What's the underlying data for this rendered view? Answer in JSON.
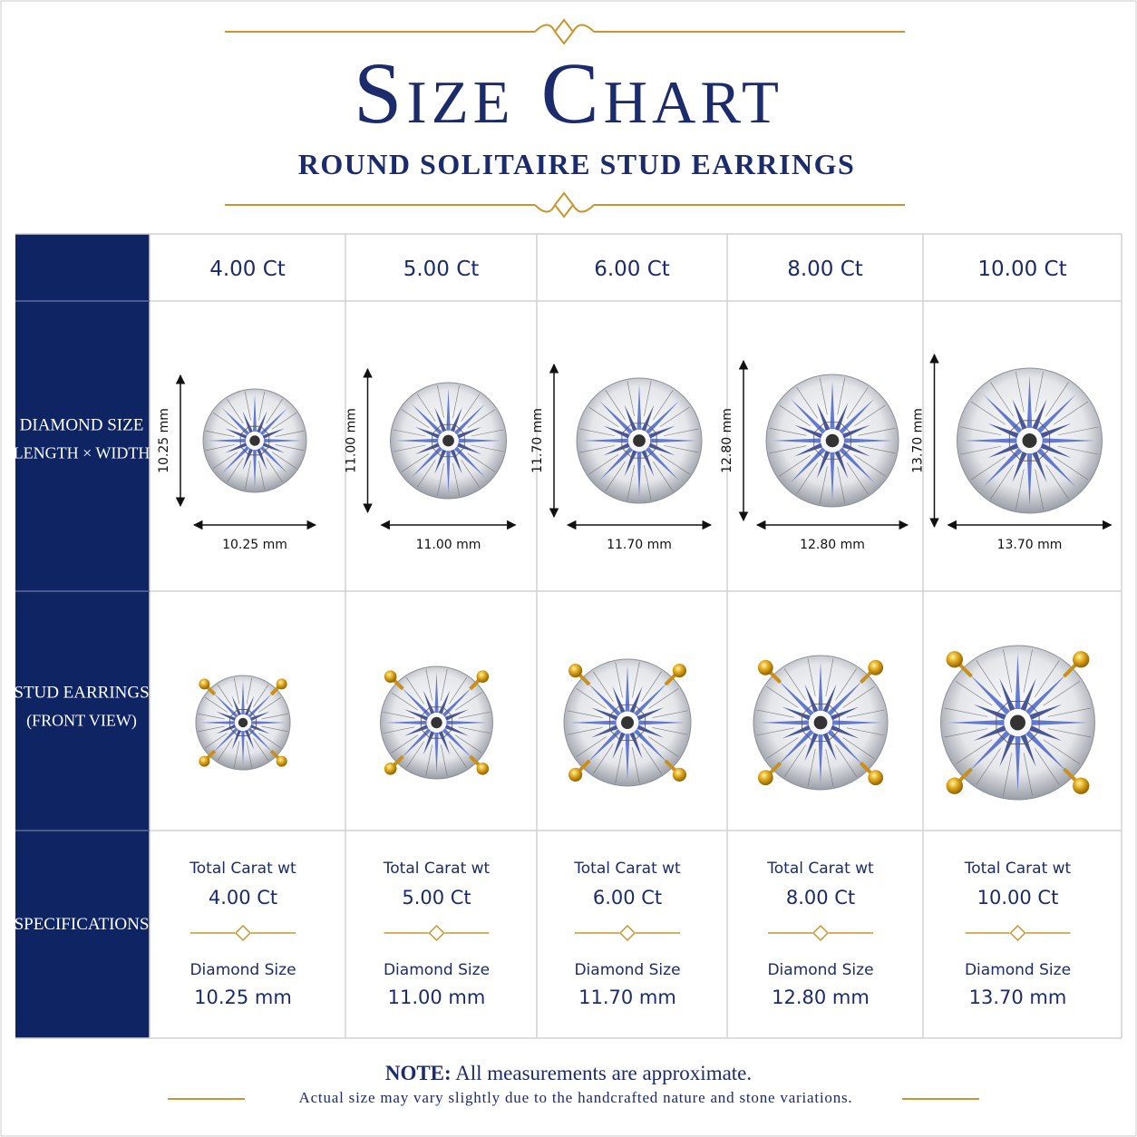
{
  "header": {
    "title": "Size Chart",
    "subtitle": "ROUND SOLITAIRE STUD EARRINGS"
  },
  "table": {
    "row_labels": [
      [
        "DIAMOND SIZE",
        "(LENGTH × WIDTH)"
      ],
      [
        "STUD EARRINGS",
        "(FRONT VIEW)"
      ],
      [
        "SPECIFICATIONS"
      ]
    ],
    "columns": [
      {
        "carat": "4.00 Ct",
        "height": "10.25 mm",
        "width": "10.25 mm",
        "total_label": "Total Carat wt",
        "total": "4.00 Ct",
        "size_label": "Diamond Size",
        "size": "10.25 mm"
      },
      {
        "carat": "5.00 Ct",
        "height": "11.00 mm",
        "width": "11.00 mm",
        "total_label": "Total Carat wt",
        "total": "5.00 Ct",
        "size_label": "Diamond Size",
        "size": "11.00 mm"
      },
      {
        "carat": "6.00 Ct",
        "height": "11.70 mm",
        "width": "11.70 mm",
        "total_label": "Total Carat wt",
        "total": "6.00 Ct",
        "size_label": "Diamond Size",
        "size": "11.70 mm"
      },
      {
        "carat": "8.00 Ct",
        "height": "12.80 mm",
        "width": "12.80 mm",
        "total_label": "Total Carat wt",
        "total": "8.00 Ct",
        "size_label": "Diamond Size",
        "size": "12.80 mm"
      },
      {
        "carat": "10.00 Ct",
        "height": "13.70 mm",
        "width": "13.70 mm",
        "total_label": "Total Carat wt",
        "total": "10.00 Ct",
        "size_label": "Diamond Size",
        "size": "13.70 mm"
      }
    ]
  },
  "note": {
    "label": "NOTE:",
    "text": "All measurements are approximate.",
    "detail": "Actual size may vary slightly due to the handcrafted nature and stone variations."
  }
}
